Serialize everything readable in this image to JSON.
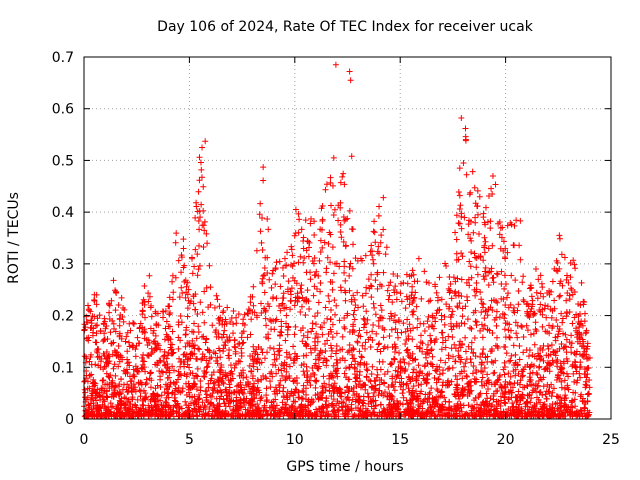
{
  "chart_data": {
    "type": "scatter",
    "title": "Day 106 of 2024, Rate Of TEC Index for receiver ucak",
    "xlabel": "GPS time / hours",
    "ylabel": "ROTI / TECUs",
    "xlim": [
      0,
      25
    ],
    "ylim": [
      0,
      0.7
    ],
    "xticks": [
      0,
      5,
      10,
      15,
      20,
      25
    ],
    "yticks": [
      0,
      0.1,
      0.2,
      0.3,
      0.4,
      0.5,
      0.6,
      0.7
    ],
    "xtick_labels": [
      "0",
      "5",
      "10",
      "15",
      "20",
      "25"
    ],
    "ytick_labels": [
      "0",
      "0.1",
      "0.2",
      "0.3",
      "0.4",
      "0.5",
      "0.6",
      "0.7"
    ],
    "grid": true,
    "marker": "plus",
    "color": "#ff0000",
    "x_data_extent": [
      0,
      24
    ],
    "envelope": {
      "description": "approximate upper envelope of the plotted ROTI points (hours, TECU)",
      "x": [
        0,
        0.5,
        1,
        1.5,
        2,
        2.5,
        3,
        3.5,
        4,
        4.5,
        5,
        5.5,
        6,
        6.5,
        7,
        7.5,
        8,
        8.5,
        9,
        9.5,
        10,
        10.5,
        11,
        11.5,
        12,
        12.5,
        13,
        13.5,
        14,
        14.5,
        15,
        15.5,
        16,
        16.5,
        17,
        17.5,
        18,
        18.5,
        19,
        19.5,
        20,
        20.5,
        21,
        21.5,
        22,
        22.5,
        23,
        23.5,
        24
      ],
      "y": [
        0.2,
        0.24,
        0.2,
        0.27,
        0.2,
        0.18,
        0.28,
        0.2,
        0.22,
        0.4,
        0.3,
        0.53,
        0.3,
        0.2,
        0.22,
        0.2,
        0.25,
        0.48,
        0.3,
        0.3,
        0.41,
        0.38,
        0.39,
        0.5,
        0.43,
        0.5,
        0.3,
        0.33,
        0.43,
        0.3,
        0.27,
        0.28,
        0.33,
        0.25,
        0.3,
        0.3,
        0.58,
        0.46,
        0.4,
        0.47,
        0.37,
        0.38,
        0.25,
        0.3,
        0.24,
        0.35,
        0.32,
        0.3,
        0.14
      ]
    },
    "peaks": [
      {
        "x": 11.95,
        "y": 0.685
      },
      {
        "x": 12.6,
        "y": 0.672
      },
      {
        "x": 12.65,
        "y": 0.655
      },
      {
        "x": 17.9,
        "y": 0.582
      },
      {
        "x": 5.75,
        "y": 0.537
      },
      {
        "x": 5.6,
        "y": 0.525
      },
      {
        "x": 12.7,
        "y": 0.508
      },
      {
        "x": 11.85,
        "y": 0.505
      },
      {
        "x": 18.0,
        "y": 0.495
      },
      {
        "x": 8.5,
        "y": 0.487
      },
      {
        "x": 19.4,
        "y": 0.47
      },
      {
        "x": 14.2,
        "y": 0.428
      },
      {
        "x": 20.7,
        "y": 0.383
      },
      {
        "x": 22.55,
        "y": 0.355
      },
      {
        "x": 3.1,
        "y": 0.277
      },
      {
        "x": 0.6,
        "y": 0.24
      },
      {
        "x": 1.4,
        "y": 0.268
      }
    ]
  }
}
